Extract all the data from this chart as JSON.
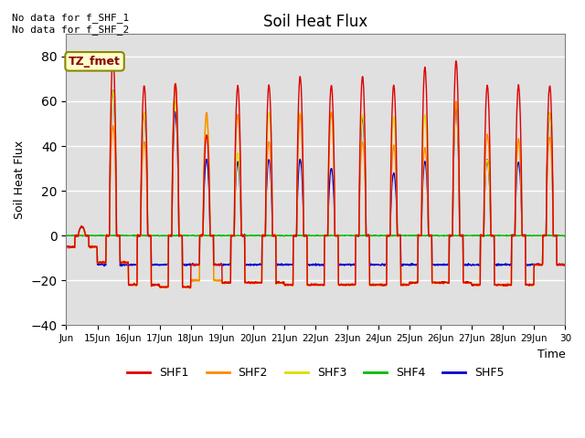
{
  "title": "Soil Heat Flux",
  "ylabel": "Soil Heat Flux",
  "xlabel": "Time",
  "ylim": [
    -40,
    90
  ],
  "annotation_text": "No data for f_SHF_1\nNo data for f_SHF_2",
  "legend_label": "TZ_fmet",
  "legend_colors": [
    "#dd0000",
    "#ff8800",
    "#dddd00",
    "#00bb00",
    "#0000cc"
  ],
  "legend_entries": [
    "SHF1",
    "SHF2",
    "SHF3",
    "SHF4",
    "SHF5"
  ],
  "background_color": "#e0e0e0",
  "xtick_labels": [
    "Jun",
    "15Jun",
    "16Jun",
    "17Jun",
    "18Jun",
    "19Jun",
    "20Jun",
    "21Jun",
    "22Jun",
    "23Jun",
    "24Jun",
    "25Jun",
    "26Jun",
    "27Jun",
    "28Jun",
    "29Jun",
    "30"
  ],
  "n_days": 16,
  "peaks1": [
    4,
    80,
    67,
    68,
    45,
    67,
    67,
    71,
    67,
    71,
    67,
    75,
    78,
    67,
    67,
    67
  ],
  "peaks2": [
    4,
    49,
    42,
    68,
    55,
    54,
    42,
    54,
    55,
    42,
    40,
    39,
    60,
    45,
    43,
    44
  ],
  "peaks3": [
    4,
    65,
    55,
    60,
    53,
    37,
    55,
    55,
    55,
    54,
    53,
    54,
    60,
    34,
    42,
    55
  ],
  "peaks5": [
    4,
    65,
    55,
    55,
    34,
    33,
    34,
    34,
    30,
    53,
    28,
    33,
    57,
    34,
    33,
    55
  ],
  "troughs1": [
    -5,
    -12,
    -22,
    -23,
    -13,
    -21,
    -21,
    -22,
    -22,
    -22,
    -22,
    -21,
    -21,
    -22,
    -22,
    -13
  ],
  "troughs2": [
    -5,
    -12,
    -22,
    -23,
    -20,
    -21,
    -21,
    -22,
    -22,
    -22,
    -22,
    -21,
    -21,
    -22,
    -22,
    -13
  ],
  "troughs3": [
    -5,
    -12,
    -22,
    -23,
    -20,
    -21,
    -21,
    -22,
    -22,
    -22,
    -22,
    -21,
    -21,
    -22,
    -22,
    -13
  ],
  "troughs5": [
    -5,
    -13,
    -13,
    -13,
    -13,
    -13,
    -13,
    -13,
    -13,
    -13,
    -13,
    -13,
    -13,
    -13,
    -13,
    -13
  ]
}
